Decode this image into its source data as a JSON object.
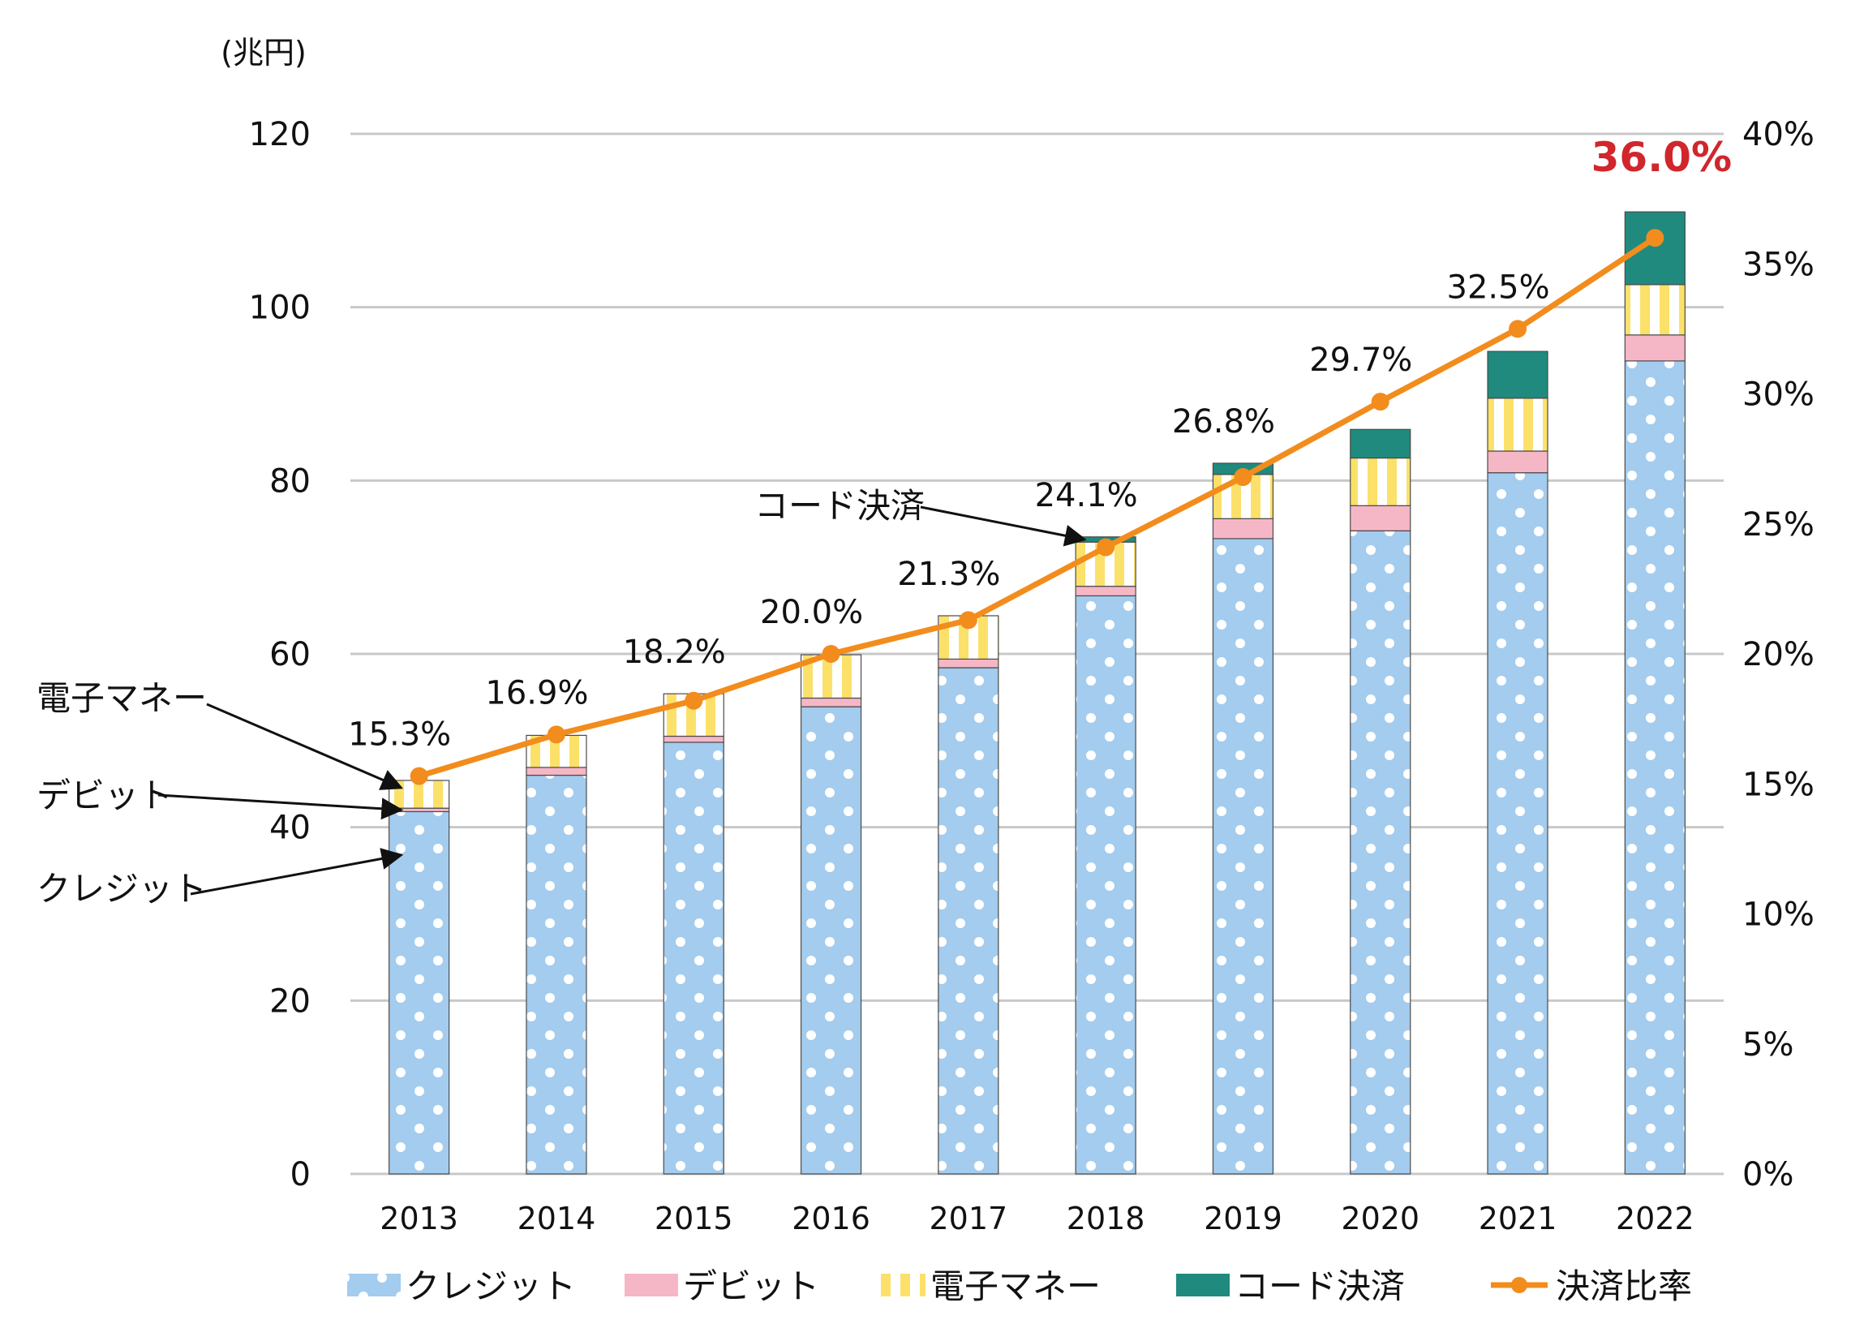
{
  "chart_data": {
    "type": "bar",
    "title": "",
    "ylabel": "(兆円)",
    "categories": [
      "2013",
      "2014",
      "2015",
      "2016",
      "2017",
      "2018",
      "2019",
      "2020",
      "2021",
      "2022"
    ],
    "ylim": [
      0,
      120
    ],
    "y2lim": [
      0,
      40
    ],
    "yticks": [
      "0",
      "20",
      "40",
      "60",
      "80",
      "100",
      "120"
    ],
    "y2ticks": [
      "0%",
      "5%",
      "10%",
      "15%",
      "20%",
      "25%",
      "30%",
      "35%",
      "40%"
    ],
    "grid": true,
    "legend_position": "bottom",
    "series": [
      {
        "name": "クレジット",
        "values": [
          41.8,
          46.0,
          49.8,
          53.9,
          58.4,
          66.7,
          73.3,
          74.2,
          80.9,
          93.8
        ],
        "color": "#a3ccee",
        "pattern": "dots"
      },
      {
        "name": "デビット",
        "values": [
          0.4,
          0.9,
          0.7,
          1.0,
          1.0,
          1.1,
          2.3,
          2.9,
          2.5,
          3.0
        ],
        "color": "#f5b7c6",
        "pattern": "solid"
      },
      {
        "name": "電子マネー",
        "values": [
          3.2,
          3.7,
          4.9,
          5.0,
          5.0,
          5.1,
          5.1,
          5.5,
          6.1,
          5.8
        ],
        "color": "#fbe16a",
        "pattern": "stripes"
      },
      {
        "name": "コード決済",
        "values": [
          0,
          0,
          0,
          0,
          0,
          0.6,
          1.3,
          3.3,
          5.4,
          8.4
        ],
        "color": "#1f8a7d",
        "pattern": "solid"
      }
    ],
    "line_series": {
      "name": "決済比率",
      "axis": "right",
      "color": "#f28c1c",
      "values": [
        15.3,
        16.9,
        18.2,
        20.0,
        21.3,
        24.1,
        26.8,
        29.7,
        32.5,
        36.0
      ],
      "labels": [
        "15.3%",
        "16.9%",
        "18.2%",
        "20.0%",
        "21.3%",
        "24.1%",
        "26.8%",
        "29.7%",
        "32.5%",
        "36.0%"
      ],
      "highlight_color": "#d0262c"
    },
    "annotations": [
      {
        "text": "電子マネー",
        "target_year": "2013",
        "series": "電子マネー"
      },
      {
        "text": "デビット",
        "target_year": "2013",
        "series": "デビット"
      },
      {
        "text": "クレジット",
        "target_year": "2013",
        "series": "クレジット"
      },
      {
        "text": "コード決済",
        "target_year": "2018",
        "series": "コード決済"
      }
    ]
  }
}
